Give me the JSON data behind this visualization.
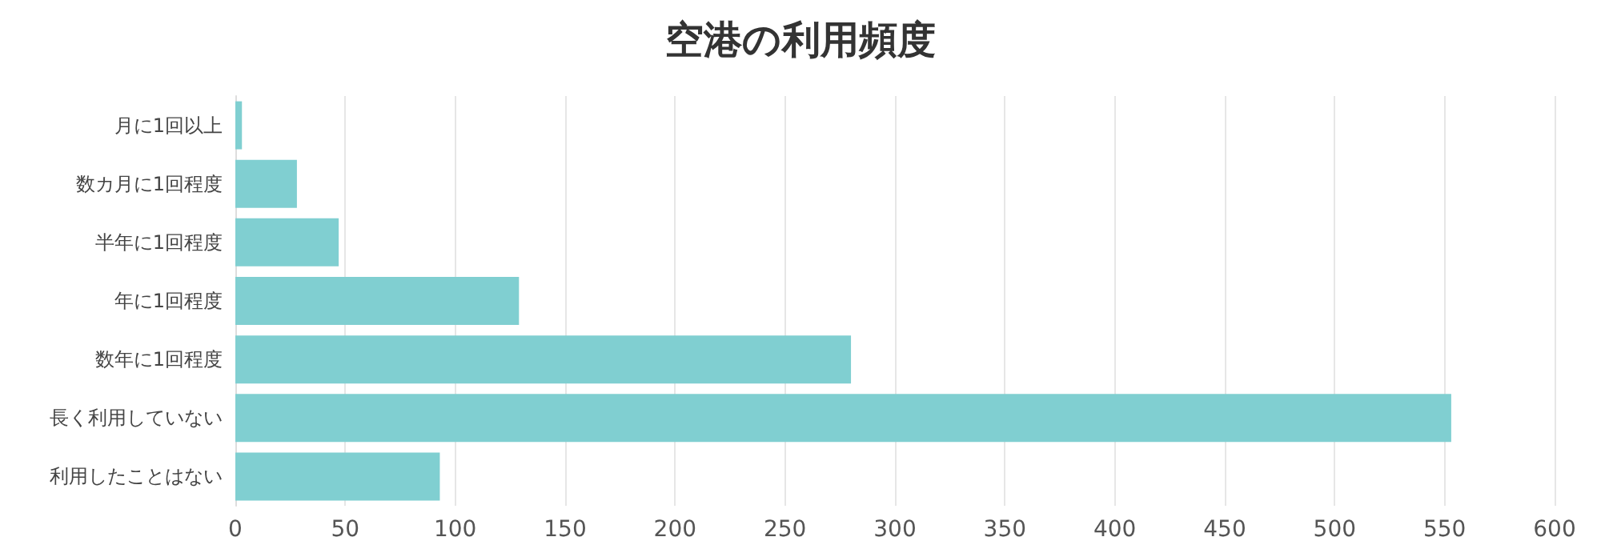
{
  "chart_data": {
    "type": "bar",
    "title": "空港の利用頻度",
    "orientation": "horizontal",
    "categories": [
      "月に1回以上",
      "数カ月に1回程度",
      "半年に1回程度",
      "年に1回程度",
      "数年に1回程度",
      "長く利用していない",
      "利用したことはない"
    ],
    "values": [
      3,
      28,
      47,
      129,
      280,
      553,
      93
    ],
    "color": "#80cfd1",
    "xlim": [
      0,
      600
    ],
    "xticks": [
      0,
      50,
      100,
      150,
      200,
      250,
      300,
      350,
      400,
      450,
      500,
      550,
      600
    ],
    "grid": "x"
  }
}
